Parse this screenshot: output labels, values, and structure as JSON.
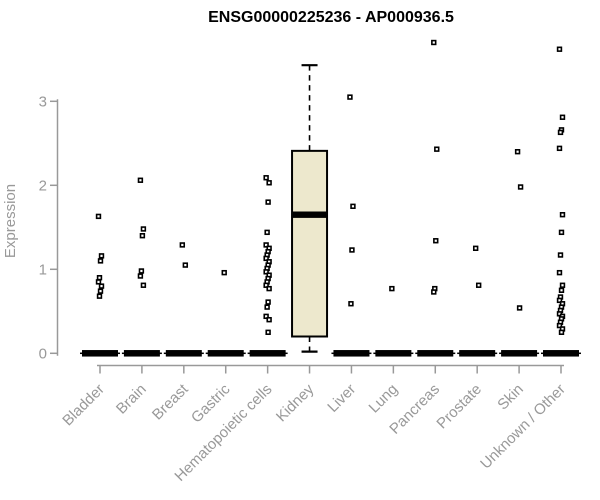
{
  "title": "ENSG00000225236 - AP000936.5",
  "colors": {
    "axis": "#999999",
    "box_fill": "#EDE8CD",
    "ink": "#000000",
    "background": "#FFFFFF"
  },
  "chart_data": {
    "type": "boxplot",
    "title": "ENSG00000225236 - AP000936.5",
    "xlabel": "",
    "ylabel": "Expression",
    "ylim": [
      0,
      3.75
    ],
    "yticks": [
      0,
      1,
      2,
      3
    ],
    "grid": false,
    "legend": "none",
    "categories": [
      "Bladder",
      "Brain",
      "Breast",
      "Gastric",
      "Hematopoietic cells",
      "Kidney",
      "Liver",
      "Lung",
      "Pancreas",
      "Prostate",
      "Skin",
      "Unknown / Other"
    ],
    "groups": [
      {
        "name": "Bladder",
        "collapsed_at_zero": true,
        "box": null,
        "points": [
          1.63,
          1.16,
          1.1,
          0.9,
          0.85,
          0.8,
          0.74,
          0.68
        ]
      },
      {
        "name": "Brain",
        "collapsed_at_zero": true,
        "box": null,
        "points": [
          2.06,
          1.48,
          1.4,
          0.98,
          0.92,
          0.81
        ]
      },
      {
        "name": "Breast",
        "collapsed_at_zero": true,
        "box": null,
        "points": [
          1.29,
          1.05
        ]
      },
      {
        "name": "Gastric",
        "collapsed_at_zero": true,
        "box": null,
        "points": [
          0.96
        ]
      },
      {
        "name": "Hematopoietic cells",
        "collapsed_at_zero": true,
        "box": null,
        "points": [
          2.09,
          2.03,
          1.8,
          1.44,
          1.29,
          1.25,
          1.21,
          1.17,
          1.13,
          1.09,
          1.05,
          1.01,
          0.97,
          0.93,
          0.89,
          0.85,
          0.81,
          0.77,
          0.61,
          0.55,
          0.44,
          0.4,
          0.25
        ]
      },
      {
        "name": "Kidney",
        "collapsed_at_zero": false,
        "box": {
          "whisker_high": 3.43,
          "q3": 2.41,
          "median": 1.65,
          "q1": 0.2,
          "whisker_low": 0.02
        },
        "points": []
      },
      {
        "name": "Liver",
        "collapsed_at_zero": true,
        "box": null,
        "points": [
          3.05,
          1.75,
          1.23,
          0.59
        ]
      },
      {
        "name": "Lung",
        "collapsed_at_zero": true,
        "box": null,
        "points": [
          0.77
        ]
      },
      {
        "name": "Pancreas",
        "collapsed_at_zero": true,
        "box": null,
        "points": [
          3.7,
          2.43,
          1.34,
          0.77,
          0.73
        ]
      },
      {
        "name": "Prostate",
        "collapsed_at_zero": true,
        "box": null,
        "points": [
          1.25,
          0.81
        ]
      },
      {
        "name": "Skin",
        "collapsed_at_zero": true,
        "box": null,
        "points": [
          2.4,
          1.98,
          0.54
        ]
      },
      {
        "name": "Unknown / Other",
        "collapsed_at_zero": true,
        "box": null,
        "points": [
          3.62,
          2.81,
          2.66,
          2.63,
          2.44,
          1.65,
          1.44,
          1.17,
          0.96,
          0.81,
          0.75,
          0.67,
          0.63,
          0.59,
          0.55,
          0.51,
          0.47,
          0.44,
          0.41,
          0.37,
          0.33,
          0.29,
          0.25
        ]
      }
    ]
  }
}
